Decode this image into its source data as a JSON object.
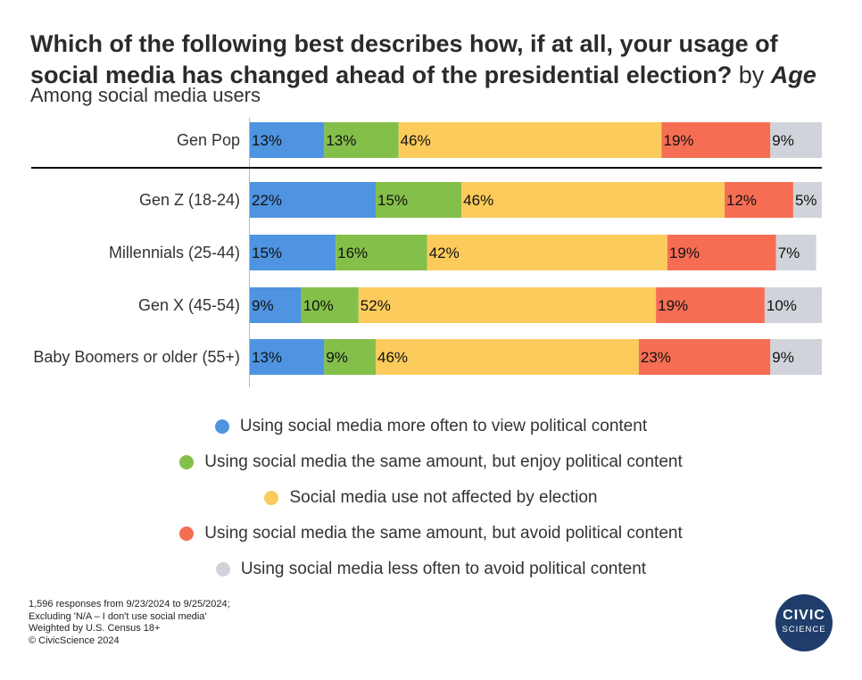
{
  "title": {
    "main": "Which of the following best describes how, if at all, your usage of social media has changed ahead of the presidential election?",
    "by": "by",
    "dimension": "Age"
  },
  "subtitle": "Among social media users",
  "chart_data": {
    "type": "bar",
    "orientation": "horizontal",
    "stacked": true,
    "categories": [
      "Gen Pop",
      "Gen Z (18-24)",
      "Millennials (25-44)",
      "Gen X (45-54)",
      "Baby Boomers or older (55+)"
    ],
    "series": [
      {
        "name": "Using social media more often to view political content",
        "color": "#4e94e0",
        "values": [
          13,
          22,
          15,
          9,
          13
        ]
      },
      {
        "name": "Using social media the same amount, but enjoy political content",
        "color": "#84bf4a",
        "values": [
          13,
          15,
          16,
          10,
          9
        ]
      },
      {
        "name": "Social media use not affected by election",
        "color": "#fbcb5c",
        "values": [
          46,
          46,
          42,
          52,
          46
        ]
      },
      {
        "name": "Using social media the same amount, but avoid political content",
        "color": "#f56e53",
        "values": [
          19,
          12,
          19,
          19,
          23
        ]
      },
      {
        "name": "Using social media less often to avoid political content",
        "color": "#d0d3da",
        "values": [
          9,
          5,
          7,
          10,
          9
        ]
      }
    ],
    "value_suffix": "%",
    "xlim": [
      0,
      100
    ],
    "legend_position": "bottom",
    "separator_after_category": "Gen Pop"
  },
  "footnote": [
    "1,596 responses from 9/23/2024 to 9/25/2024;",
    "Excluding 'N/A – I don't use social media'",
    "Weighted by U.S. Census 18+",
    "© CivicScience 2024"
  ],
  "logo": {
    "line1": "CIVIC",
    "line2": "SCIENCE",
    "color": "#1e3d6b"
  }
}
